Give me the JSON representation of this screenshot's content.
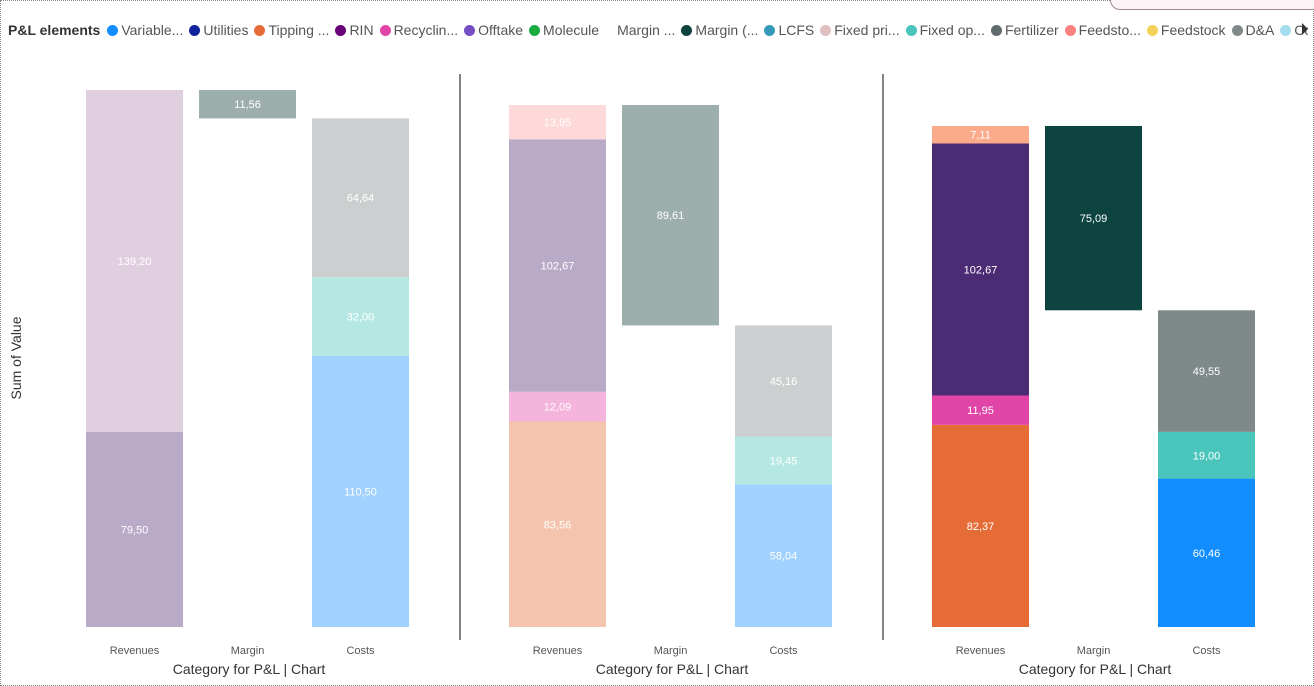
{
  "legend": {
    "title": "P&L elements",
    "items": [
      {
        "label": "Variable...",
        "color": "#118DFF"
      },
      {
        "label": "Utilities",
        "color": "#12239E"
      },
      {
        "label": "Tipping ...",
        "color": "#E66C37"
      },
      {
        "label": "RIN",
        "color": "#6B007B"
      },
      {
        "label": "Recyclin...",
        "color": "#E044A7"
      },
      {
        "label": "Offtake",
        "color": "#744EC2"
      },
      {
        "label": "Molecule",
        "color": "#1AAB40"
      },
      {
        "label": "Margin ...",
        "color": null
      },
      {
        "label": "Margin (...",
        "color": "#0E4440"
      },
      {
        "label": "LCFS",
        "color": "#3599B8"
      },
      {
        "label": "Fixed pri...",
        "color": "#DFBFBF"
      },
      {
        "label": "Fixed op...",
        "color": "#4AC5BB"
      },
      {
        "label": "Fertilizer",
        "color": "#5F6B6D"
      },
      {
        "label": "Feedsto...",
        "color": "#FB8281"
      },
      {
        "label": "Feedstock",
        "color": "#F4D25A"
      },
      {
        "label": "D&A",
        "color": "#7F898A"
      },
      {
        "label": "Compost",
        "color": "#A4DDEE"
      }
    ]
  },
  "chart_data": [
    {
      "type": "bar",
      "subtype": "waterfall",
      "categories": [
        "Revenues",
        "Margin",
        "Costs"
      ],
      "xlabel": "Category for P&L | Chart",
      "ylabel": "Sum of Value",
      "ylim": [
        0,
        225
      ],
      "bars": [
        {
          "category": "Revenues",
          "segments": [
            {
              "value": 79.5,
              "label": "79,50",
              "color": "#B9AAC8"
            },
            {
              "value": 139.2,
              "label": "139,20",
              "color": "#E0CFDF"
            }
          ]
        },
        {
          "category": "Margin",
          "base": 207.14,
          "segments": [
            {
              "value": 11.56,
              "label": "11,56",
              "color": "#9DAFAD"
            }
          ]
        },
        {
          "category": "Costs",
          "segments": [
            {
              "value": 110.5,
              "label": "110,50",
              "color": "#A0D1FF"
            },
            {
              "value": 32.0,
              "label": "32,00",
              "color": "#B6E8E3"
            },
            {
              "value": 64.64,
              "label": "64,64",
              "color": "#CBCFCF"
            }
          ]
        }
      ]
    },
    {
      "type": "bar",
      "subtype": "waterfall",
      "categories": [
        "Revenues",
        "Margin",
        "Costs"
      ],
      "xlabel": "Category for P&L | Chart",
      "ylabel": "Sum of Value",
      "ylim": [
        0,
        225
      ],
      "bars": [
        {
          "category": "Revenues",
          "segments": [
            {
              "value": 83.56,
              "label": "83,56",
              "color": "#F4C4AE"
            },
            {
              "value": 12.09,
              "label": "12,09",
              "color": "#F4B4DC"
            },
            {
              "value": 102.67,
              "label": "102,67",
              "color": "#B9AAC8"
            },
            {
              "value": 13.95,
              "label": "13,95",
              "color": "#FDDAD9"
            }
          ]
        },
        {
          "category": "Margin",
          "base": 122.65,
          "segments": [
            {
              "value": 89.61,
              "label": "89,61",
              "color": "#9DAFAD"
            }
          ]
        },
        {
          "category": "Costs",
          "segments": [
            {
              "value": 58.04,
              "label": "58,04",
              "color": "#A0D1FF"
            },
            {
              "value": 19.45,
              "label": "19,45",
              "color": "#B6E8E3"
            },
            {
              "value": 45.16,
              "label": "45,16",
              "color": "#CBCFCF"
            }
          ]
        }
      ]
    },
    {
      "type": "bar",
      "subtype": "waterfall",
      "categories": [
        "Revenues",
        "Margin",
        "Costs"
      ],
      "xlabel": "Category for P&L | Chart",
      "ylabel": "Sum of Value",
      "ylim": [
        0,
        225
      ],
      "bars": [
        {
          "category": "Revenues",
          "segments": [
            {
              "value": 82.37,
              "label": "82,37",
              "color": "#E66C37"
            },
            {
              "value": 11.95,
              "label": "11,95",
              "color": "#E044A7"
            },
            {
              "value": 102.67,
              "label": "102,67",
              "color": "#4B2B73"
            },
            {
              "value": 7.11,
              "label": "7,11",
              "color": "#FCAB8A"
            }
          ]
        },
        {
          "category": "Margin",
          "base": 129.01,
          "segments": [
            {
              "value": 75.09,
              "label": "75,09",
              "color": "#0E4440"
            }
          ]
        },
        {
          "category": "Costs",
          "segments": [
            {
              "value": 60.46,
              "label": "60,46",
              "color": "#118DFF"
            },
            {
              "value": 19.0,
              "label": "19,00",
              "color": "#4AC5BB"
            },
            {
              "value": 49.55,
              "label": "49,55",
              "color": "#7F898A"
            }
          ]
        }
      ]
    }
  ]
}
